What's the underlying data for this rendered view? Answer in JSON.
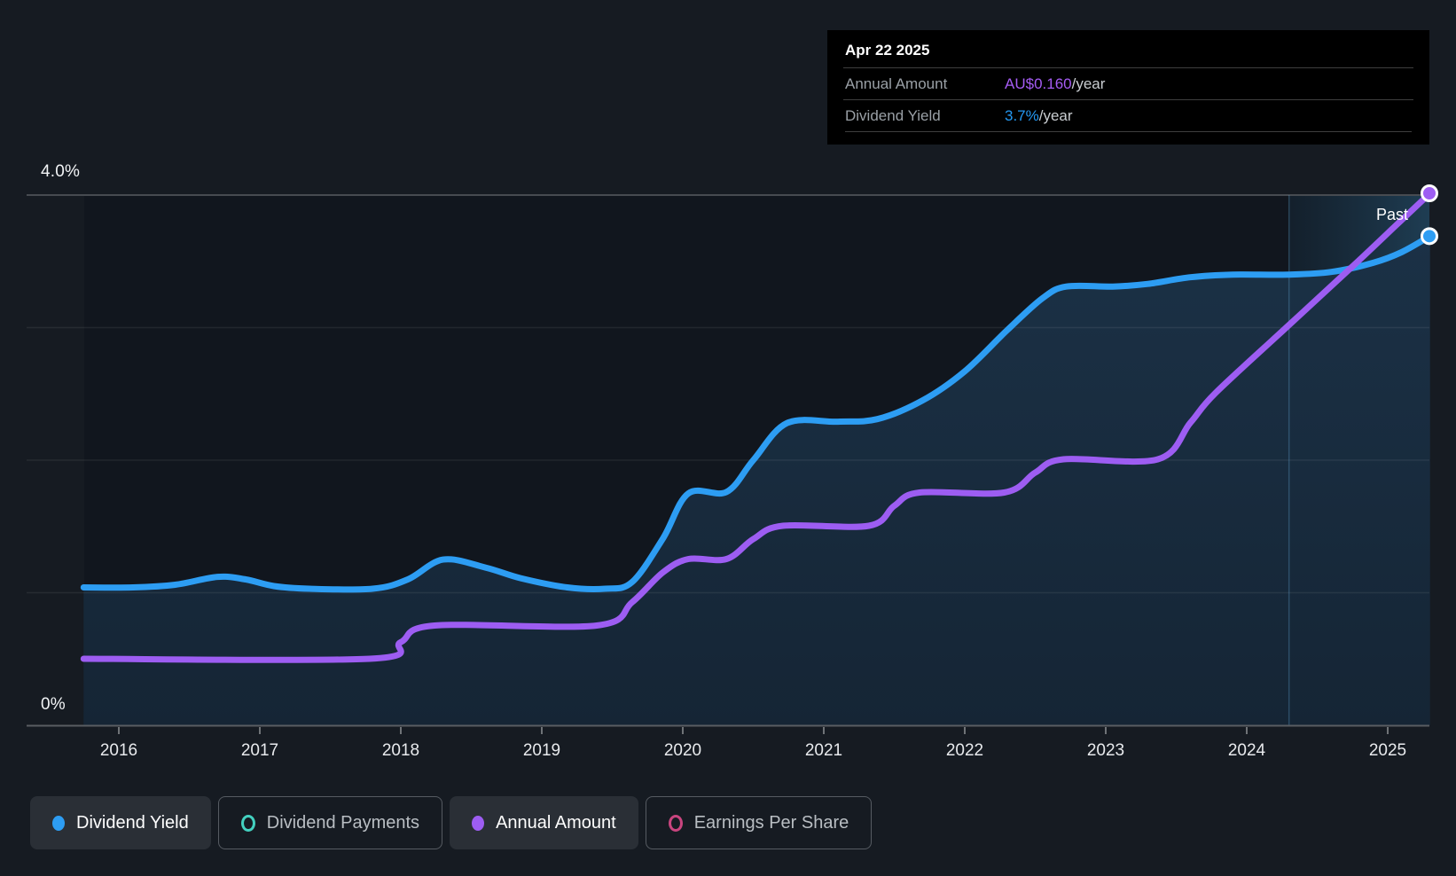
{
  "page": {
    "background": "#161b22"
  },
  "tooltip": {
    "date": "Apr 22 2025",
    "rows": [
      {
        "label": "Annual Amount",
        "value": "AU$0.160",
        "suffix": "/year",
        "color_key": "purple_text"
      },
      {
        "label": "Dividend Yield",
        "value": "3.7%",
        "suffix": "/year",
        "color_key": "blue_text"
      }
    ]
  },
  "axis": {
    "y_top_label": "4.0%",
    "y_zero_label": "0%",
    "years": [
      "2016",
      "2017",
      "2018",
      "2019",
      "2020",
      "2021",
      "2022",
      "2023",
      "2024",
      "2025"
    ],
    "past_label": "Past"
  },
  "legend": [
    {
      "label": "Dividend Yield",
      "marker": "solid",
      "color_key": "blue",
      "active": true
    },
    {
      "label": "Dividend Payments",
      "marker": "outline",
      "color_key": "teal",
      "active": false
    },
    {
      "label": "Annual Amount",
      "marker": "solid",
      "color_key": "purple",
      "active": true
    },
    {
      "label": "Earnings Per Share",
      "marker": "outline",
      "color_key": "pink",
      "active": false
    }
  ],
  "colors": {
    "blue": "#2d9df3",
    "purple": "#9d5df2",
    "purple_text": "#a55cf3",
    "blue_text": "#2499f3",
    "teal": "#43d1c0",
    "pink": "#c9457f",
    "grid_major": "#474b51",
    "grid_minor": "rgba(255,255,255,0.07)",
    "axis_line": "#595d62",
    "tick": "#6f7377",
    "plot_bg": "#11161e"
  },
  "chart_data": {
    "type": "line",
    "title": "Dividend history",
    "x_range": [
      2015.75,
      2025.3
    ],
    "x_ticks": [
      2016,
      2017,
      2018,
      2019,
      2020,
      2021,
      2022,
      2023,
      2024,
      2025
    ],
    "y_axis": {
      "unit": "%",
      "min": 0,
      "max": 4.0,
      "gridline_values": [
        1.0,
        2.0,
        3.0,
        4.0
      ],
      "top_label": "4.0%",
      "zero_label": "0%"
    },
    "past_divider_year": 2024.3,
    "legend_position": "bottom",
    "series": [
      {
        "name": "Dividend Yield",
        "unit": "%",
        "color_key": "blue",
        "fill": true,
        "end_marker": true,
        "end_value_label": "3.7%",
        "points": [
          [
            2015.75,
            1.04
          ],
          [
            2016.1,
            1.04
          ],
          [
            2016.4,
            1.06
          ],
          [
            2016.7,
            1.12
          ],
          [
            2016.9,
            1.1
          ],
          [
            2017.1,
            1.05
          ],
          [
            2017.35,
            1.03
          ],
          [
            2017.8,
            1.03
          ],
          [
            2018.05,
            1.1
          ],
          [
            2018.3,
            1.25
          ],
          [
            2018.6,
            1.19
          ],
          [
            2018.85,
            1.11
          ],
          [
            2019.18,
            1.04
          ],
          [
            2019.45,
            1.03
          ],
          [
            2019.64,
            1.08
          ],
          [
            2019.86,
            1.41
          ],
          [
            2020.04,
            1.75
          ],
          [
            2020.31,
            1.76
          ],
          [
            2020.5,
            2.0
          ],
          [
            2020.74,
            2.28
          ],
          [
            2021.1,
            2.29
          ],
          [
            2021.38,
            2.31
          ],
          [
            2021.7,
            2.45
          ],
          [
            2022.0,
            2.67
          ],
          [
            2022.3,
            2.98
          ],
          [
            2022.55,
            3.22
          ],
          [
            2022.72,
            3.31
          ],
          [
            2023.05,
            3.31
          ],
          [
            2023.3,
            3.33
          ],
          [
            2023.6,
            3.38
          ],
          [
            2023.9,
            3.4
          ],
          [
            2024.29,
            3.4
          ],
          [
            2024.6,
            3.42
          ],
          [
            2024.9,
            3.49
          ],
          [
            2025.1,
            3.57
          ],
          [
            2025.3,
            3.69
          ]
        ]
      },
      {
        "name": "Annual Amount",
        "unit": "AU$",
        "color_key": "purple",
        "fill": false,
        "end_marker": true,
        "end_value_label": "AU$0.160",
        "points": [
          [
            2015.75,
            0.02
          ],
          [
            2017.78,
            0.02
          ],
          [
            2018.0,
            0.025
          ],
          [
            2018.24,
            0.03
          ],
          [
            2019.39,
            0.03
          ],
          [
            2019.64,
            0.037
          ],
          [
            2019.86,
            0.046
          ],
          [
            2020.04,
            0.05
          ],
          [
            2020.31,
            0.05
          ],
          [
            2020.5,
            0.056
          ],
          [
            2020.71,
            0.06
          ],
          [
            2021.32,
            0.06
          ],
          [
            2021.5,
            0.066
          ],
          [
            2021.68,
            0.07
          ],
          [
            2022.28,
            0.07
          ],
          [
            2022.5,
            0.076
          ],
          [
            2022.7,
            0.08
          ],
          [
            2023.37,
            0.08
          ],
          [
            2023.6,
            0.091
          ],
          [
            2023.78,
            0.1
          ],
          [
            2024.29,
            0.12
          ],
          [
            2024.75,
            0.138
          ],
          [
            2025.05,
            0.15
          ],
          [
            2025.3,
            0.16
          ]
        ]
      }
    ]
  }
}
